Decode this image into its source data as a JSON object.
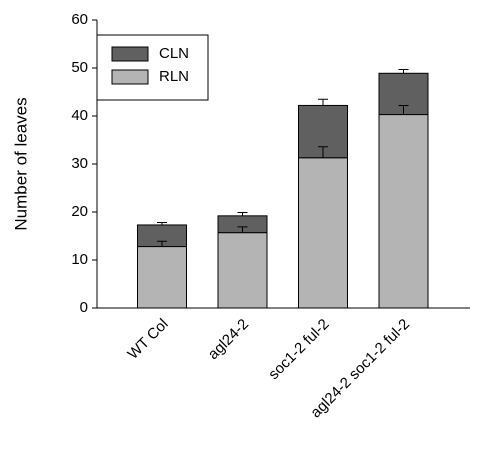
{
  "chart_data": {
    "type": "stacked_bar",
    "y_label": "Number of leaves",
    "categories": [
      "WT Col",
      "agl24-2",
      "soc1-2 ful-2",
      "agl24-2 soc1-2 ful-2"
    ],
    "series": [
      {
        "name": "RLN",
        "color": "#b4b4b4",
        "values": [
          12.8,
          15.7,
          31.3,
          40.3
        ],
        "errors": [
          1.1,
          1.2,
          2.3,
          1.9
        ]
      },
      {
        "name": "CLN",
        "color": "#606060",
        "values": [
          4.5,
          3.5,
          10.9,
          8.6
        ],
        "errors": [
          0.5,
          0.7,
          1.3,
          0.8
        ]
      }
    ],
    "ylim": [
      0,
      60
    ],
    "yticks": [
      0,
      10,
      20,
      30,
      40,
      50,
      60
    ],
    "legend": "upper left"
  }
}
